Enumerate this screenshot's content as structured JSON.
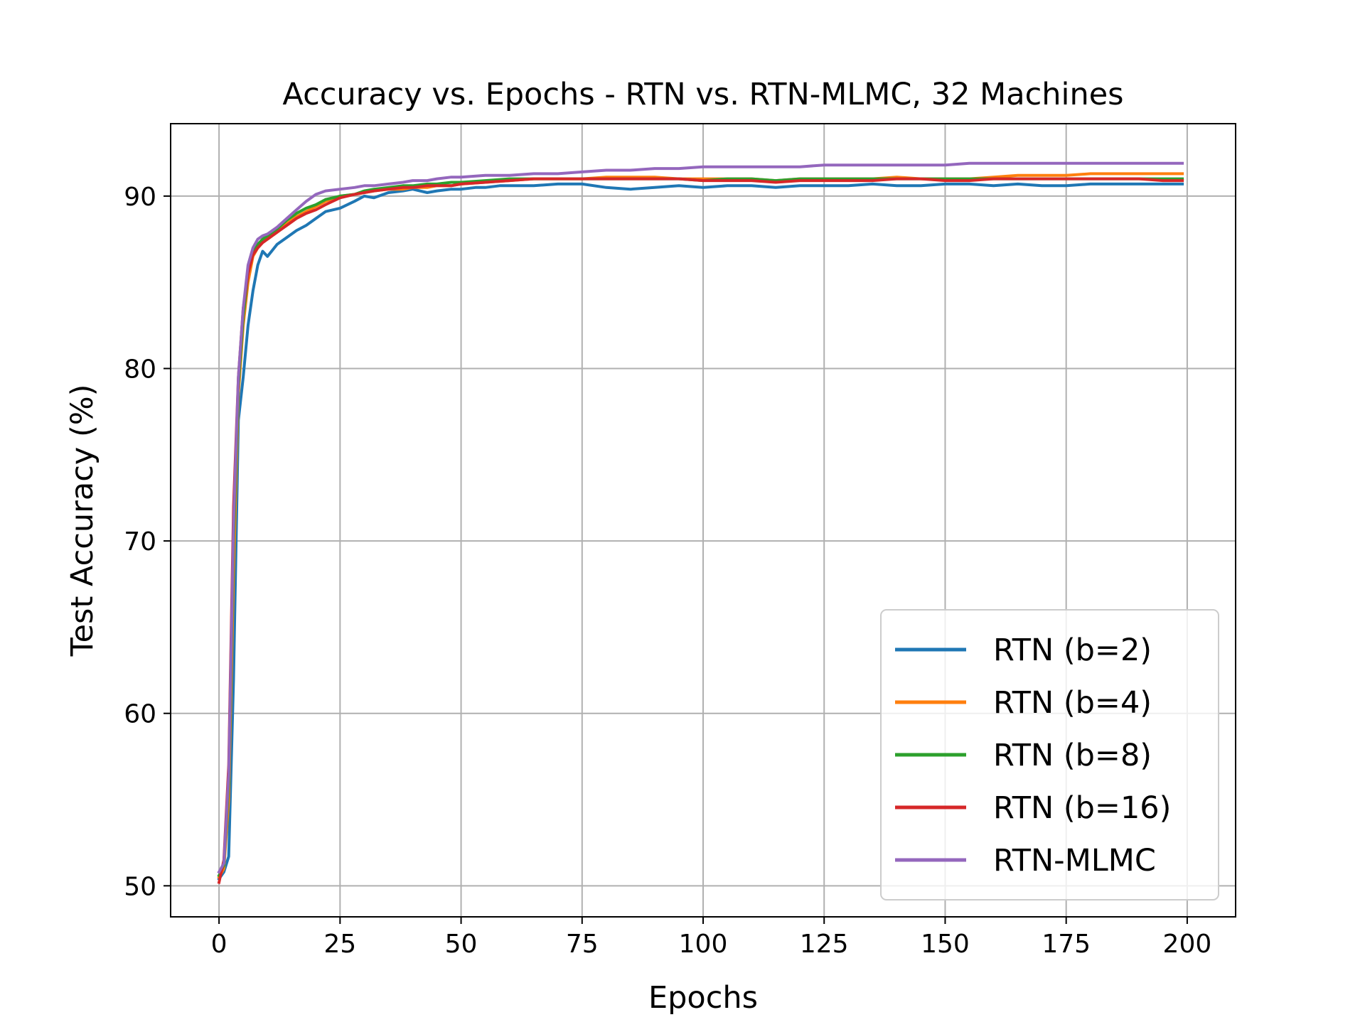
{
  "chart_data": {
    "type": "line",
    "title": "Accuracy vs. Epochs - RTN vs. RTN-MLMC, 32 Machines",
    "xlabel": "Epochs",
    "ylabel": "Test Accuracy (%)",
    "xlim": [
      -10,
      210
    ],
    "ylim": [
      48.2,
      94.2
    ],
    "xticks": [
      0,
      25,
      50,
      75,
      100,
      125,
      150,
      175,
      200
    ],
    "yticks": [
      50,
      60,
      70,
      80,
      90
    ],
    "grid": true,
    "legend_position": "lower-right",
    "series": [
      {
        "name": "RTN (b=2)",
        "color": "#1f77b4",
        "x": [
          0,
          1,
          2,
          3,
          4,
          5,
          6,
          7,
          8,
          9,
          10,
          12,
          14,
          16,
          18,
          20,
          22,
          25,
          28,
          30,
          32,
          35,
          38,
          40,
          43,
          45,
          48,
          50,
          53,
          55,
          58,
          60,
          65,
          70,
          75,
          80,
          85,
          90,
          95,
          100,
          105,
          110,
          115,
          120,
          125,
          130,
          135,
          140,
          145,
          150,
          155,
          160,
          165,
          170,
          175,
          180,
          185,
          190,
          195,
          199
        ],
        "y": [
          50.4,
          50.8,
          51.7,
          62.0,
          77.0,
          79.5,
          82.5,
          84.5,
          86.0,
          86.8,
          86.5,
          87.2,
          87.6,
          88.0,
          88.3,
          88.7,
          89.1,
          89.3,
          89.7,
          90.0,
          89.9,
          90.2,
          90.3,
          90.4,
          90.2,
          90.3,
          90.4,
          90.4,
          90.5,
          90.5,
          90.6,
          90.6,
          90.6,
          90.7,
          90.7,
          90.5,
          90.4,
          90.5,
          90.6,
          90.5,
          90.6,
          90.6,
          90.5,
          90.6,
          90.6,
          90.6,
          90.7,
          90.6,
          90.6,
          90.7,
          90.7,
          90.6,
          90.7,
          90.6,
          90.6,
          90.7,
          90.7,
          90.7,
          90.7,
          90.7
        ]
      },
      {
        "name": "RTN (b=4)",
        "color": "#ff7f0e",
        "x": [
          0,
          1,
          2,
          3,
          4,
          5,
          6,
          7,
          8,
          9,
          10,
          12,
          14,
          16,
          18,
          20,
          22,
          25,
          28,
          30,
          32,
          35,
          38,
          40,
          43,
          45,
          48,
          50,
          55,
          60,
          65,
          70,
          75,
          80,
          85,
          90,
          95,
          100,
          105,
          110,
          115,
          120,
          125,
          130,
          135,
          140,
          145,
          150,
          155,
          160,
          165,
          170,
          175,
          180,
          185,
          190,
          195,
          199
        ],
        "y": [
          50.5,
          51.0,
          55.0,
          68.0,
          78.5,
          82.5,
          85.0,
          86.5,
          87.0,
          87.3,
          87.5,
          87.9,
          88.4,
          88.8,
          89.1,
          89.4,
          89.7,
          90.0,
          90.1,
          90.2,
          90.3,
          90.4,
          90.4,
          90.5,
          90.5,
          90.6,
          90.6,
          90.7,
          90.8,
          90.9,
          91.0,
          91.0,
          91.0,
          91.1,
          91.1,
          91.1,
          91.0,
          91.0,
          91.0,
          91.0,
          90.9,
          91.0,
          91.0,
          91.0,
          91.0,
          91.1,
          91.0,
          91.0,
          91.0,
          91.1,
          91.2,
          91.2,
          91.2,
          91.3,
          91.3,
          91.3,
          91.3,
          91.3
        ]
      },
      {
        "name": "RTN (b=8)",
        "color": "#2ca02c",
        "x": [
          0,
          1,
          2,
          3,
          4,
          5,
          6,
          7,
          8,
          9,
          10,
          12,
          14,
          16,
          18,
          20,
          22,
          25,
          28,
          30,
          32,
          35,
          38,
          40,
          43,
          45,
          48,
          50,
          55,
          60,
          65,
          70,
          75,
          80,
          85,
          90,
          95,
          100,
          105,
          110,
          115,
          120,
          125,
          130,
          135,
          140,
          145,
          150,
          155,
          160,
          165,
          170,
          175,
          180,
          185,
          190,
          195,
          199
        ],
        "y": [
          50.6,
          51.2,
          56.0,
          70.0,
          79.0,
          83.0,
          85.5,
          86.7,
          87.2,
          87.5,
          87.7,
          88.1,
          88.6,
          89.0,
          89.3,
          89.5,
          89.8,
          90.0,
          90.1,
          90.3,
          90.4,
          90.5,
          90.6,
          90.6,
          90.7,
          90.7,
          90.8,
          90.8,
          90.9,
          91.0,
          91.0,
          91.0,
          91.0,
          91.0,
          91.0,
          91.0,
          91.0,
          90.9,
          91.0,
          91.0,
          90.9,
          91.0,
          91.0,
          91.0,
          91.0,
          91.0,
          91.0,
          91.0,
          91.0,
          91.0,
          91.0,
          91.0,
          91.0,
          91.0,
          91.0,
          91.0,
          91.0,
          91.0
        ]
      },
      {
        "name": "RTN (b=16)",
        "color": "#d62728",
        "x": [
          0,
          1,
          2,
          3,
          4,
          5,
          6,
          7,
          8,
          9,
          10,
          12,
          14,
          16,
          18,
          20,
          22,
          25,
          28,
          30,
          32,
          35,
          38,
          40,
          43,
          45,
          48,
          50,
          55,
          60,
          65,
          70,
          75,
          80,
          85,
          90,
          95,
          100,
          105,
          110,
          115,
          120,
          125,
          130,
          135,
          140,
          145,
          150,
          155,
          160,
          165,
          170,
          175,
          180,
          185,
          190,
          195,
          199
        ],
        "y": [
          50.2,
          51.5,
          57.0,
          72.0,
          79.5,
          83.5,
          85.5,
          86.6,
          87.0,
          87.3,
          87.5,
          87.9,
          88.3,
          88.7,
          89.0,
          89.2,
          89.5,
          89.9,
          90.1,
          90.2,
          90.3,
          90.4,
          90.5,
          90.5,
          90.6,
          90.6,
          90.6,
          90.7,
          90.8,
          90.9,
          91.0,
          91.0,
          91.0,
          91.0,
          91.0,
          91.0,
          91.0,
          90.9,
          90.9,
          90.9,
          90.8,
          90.9,
          90.9,
          90.9,
          90.9,
          91.0,
          91.0,
          90.9,
          90.9,
          91.0,
          91.0,
          91.0,
          91.0,
          91.0,
          91.0,
          91.0,
          90.9,
          90.9
        ]
      },
      {
        "name": "RTN-MLMC",
        "color": "#9467bd",
        "x": [
          0,
          1,
          2,
          3,
          4,
          5,
          6,
          7,
          8,
          9,
          10,
          12,
          14,
          16,
          18,
          20,
          22,
          25,
          28,
          30,
          32,
          35,
          38,
          40,
          43,
          45,
          48,
          50,
          55,
          60,
          65,
          70,
          75,
          80,
          85,
          90,
          95,
          100,
          105,
          110,
          115,
          120,
          125,
          130,
          135,
          140,
          145,
          150,
          155,
          160,
          165,
          170,
          175,
          180,
          185,
          190,
          195,
          199
        ],
        "y": [
          50.8,
          51.3,
          56.5,
          71.0,
          79.5,
          83.5,
          86.0,
          87.0,
          87.5,
          87.7,
          87.8,
          88.2,
          88.7,
          89.2,
          89.7,
          90.1,
          90.3,
          90.4,
          90.5,
          90.6,
          90.6,
          90.7,
          90.8,
          90.9,
          90.9,
          91.0,
          91.1,
          91.1,
          91.2,
          91.2,
          91.3,
          91.3,
          91.4,
          91.5,
          91.5,
          91.6,
          91.6,
          91.7,
          91.7,
          91.7,
          91.7,
          91.7,
          91.8,
          91.8,
          91.8,
          91.8,
          91.8,
          91.8,
          91.9,
          91.9,
          91.9,
          91.9,
          91.9,
          91.9,
          91.9,
          91.9,
          91.9,
          91.9
        ]
      }
    ]
  }
}
